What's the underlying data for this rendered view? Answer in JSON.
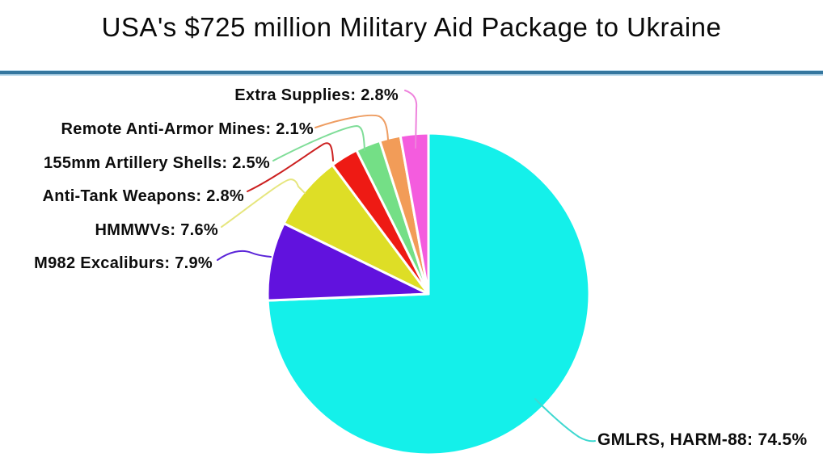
{
  "chart_data": {
    "type": "pie",
    "title": "USA's $725 million Military Aid Package to Ukraine",
    "legend_position": "callout-labels",
    "start_angle_deg": 0,
    "direction": "clockwise",
    "slices": [
      {
        "name": "GMLRS, HARM-88",
        "value": 74.5,
        "label": "GMLRS, HARM-88: 74.5%",
        "color": "#14f0ea",
        "leader_color": "#3ed8d0"
      },
      {
        "name": "M982 Excaliburs",
        "value": 7.9,
        "label": "M982 Excaliburs: 7.9%",
        "color": "#6112de",
        "leader_color": "#5a24d8"
      },
      {
        "name": "HMMWVs",
        "value": 7.6,
        "label": "HMMWVs: 7.6%",
        "color": "#dede26",
        "leader_color": "#e6e67e"
      },
      {
        "name": "Anti-Tank Weapons",
        "value": 2.8,
        "label": "Anti-Tank Weapons: 2.8%",
        "color": "#ee1a14",
        "leader_color": "#cc2020"
      },
      {
        "name": "155mm Artillery Shells",
        "value": 2.5,
        "label": "155mm Artillery Shells: 2.5%",
        "color": "#74df86",
        "leader_color": "#7fdd98"
      },
      {
        "name": "Remote Anti-Armor Mines",
        "value": 2.1,
        "label": "Remote Anti-Armor Mines: 2.1%",
        "color": "#f29c58",
        "leader_color": "#ee9d62"
      },
      {
        "name": "Extra Supplies",
        "value": 2.8,
        "label": "Extra Supplies: 2.8%",
        "color": "#f45cde",
        "leader_color": "#ee82dc"
      }
    ],
    "divider_color": "#35779f",
    "background_color": "#ffffff",
    "title_color": "#0a0a0a",
    "label_color": "#0d0d0d"
  }
}
